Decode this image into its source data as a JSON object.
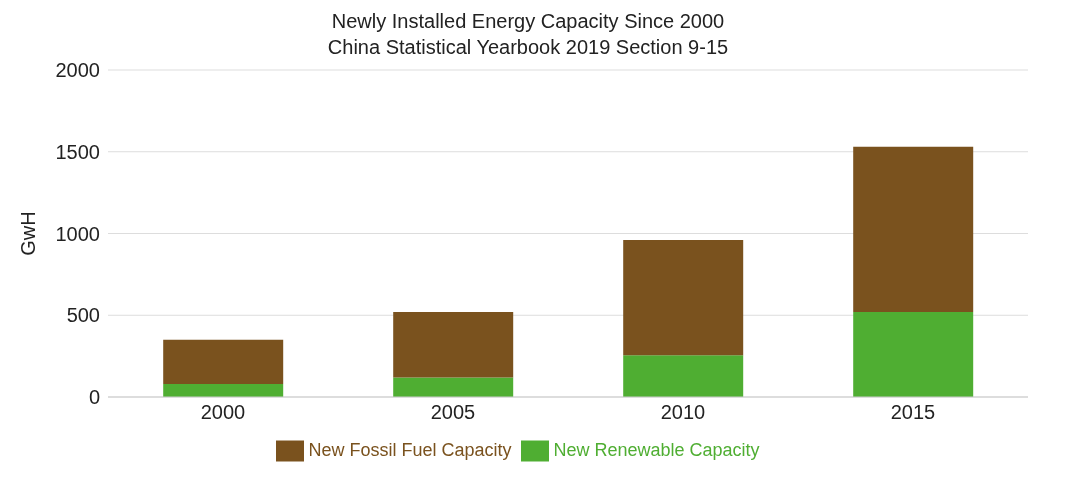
{
  "chart_data": {
    "type": "bar",
    "title": "Newly Installed Energy Capacity Since 2000",
    "subtitle": "China Statistical Yearbook 2019 Section 9-15",
    "ylabel": "GwH",
    "categories": [
      "2000",
      "2005",
      "2010",
      "2015"
    ],
    "stacked": true,
    "series": [
      {
        "name": "New Renewable Capacity",
        "color": "#4fae32",
        "values": [
          80,
          120,
          255,
          520
        ]
      },
      {
        "name": "New Fossil Fuel Capacity",
        "color": "#7a521e",
        "values": [
          270,
          400,
          705,
          1010
        ]
      }
    ],
    "ylim": [
      0,
      2000
    ],
    "yticks": [
      0,
      500,
      1000,
      1500,
      2000
    ],
    "grid": "y",
    "legend": "bottom"
  }
}
